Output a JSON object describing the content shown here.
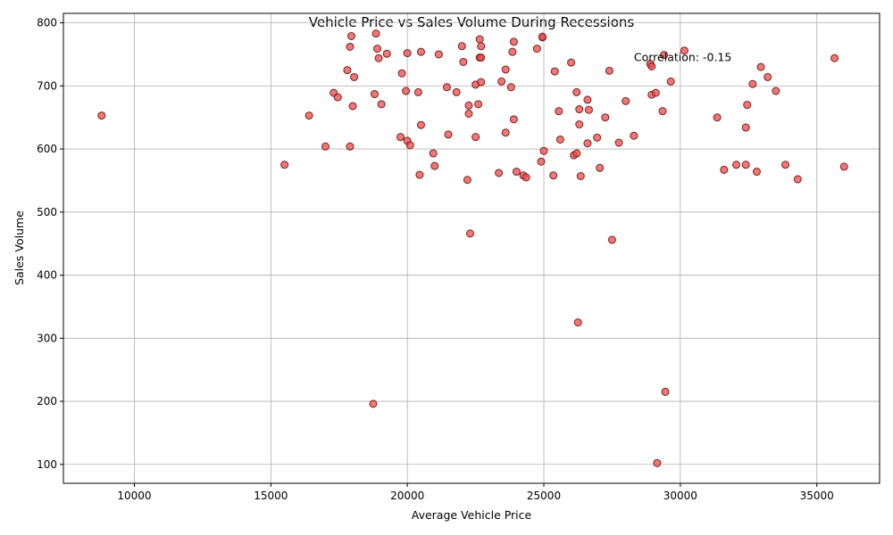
{
  "chart_data": {
    "type": "scatter",
    "title": "Vehicle Price vs Sales Volume During Recessions",
    "xlabel": "Average Vehicle Price",
    "ylabel": "Sales Volume",
    "xlim": [
      7400,
      37300
    ],
    "ylim": [
      70,
      815
    ],
    "xticks": [
      10000,
      15000,
      20000,
      25000,
      30000,
      35000
    ],
    "yticks": [
      100,
      200,
      300,
      400,
      500,
      600,
      700,
      800
    ],
    "grid": true,
    "marker_color": "#e84a4a",
    "marker_edge_color": "#7a1f1f",
    "annotation": {
      "text": "Correlation: -0.15",
      "x": 28300,
      "y": 745
    },
    "series": [
      {
        "points": [
          [
            8800,
            653
          ],
          [
            15500,
            575
          ],
          [
            16400,
            653
          ],
          [
            17000,
            604
          ],
          [
            17300,
            689
          ],
          [
            17450,
            682
          ],
          [
            17800,
            725
          ],
          [
            17900,
            762
          ],
          [
            17900,
            604
          ],
          [
            17950,
            779
          ],
          [
            18000,
            668
          ],
          [
            18050,
            714
          ],
          [
            18750,
            196
          ],
          [
            18800,
            687
          ],
          [
            18850,
            783
          ],
          [
            18900,
            759
          ],
          [
            18950,
            744
          ],
          [
            19050,
            671
          ],
          [
            19250,
            751
          ],
          [
            19750,
            619
          ],
          [
            19800,
            720
          ],
          [
            19950,
            692
          ],
          [
            20000,
            752
          ],
          [
            20000,
            613
          ],
          [
            20100,
            606
          ],
          [
            20400,
            690
          ],
          [
            20450,
            559
          ],
          [
            20500,
            754
          ],
          [
            20500,
            638
          ],
          [
            20950,
            593
          ],
          [
            21000,
            573
          ],
          [
            21150,
            750
          ],
          [
            21450,
            698
          ],
          [
            21500,
            623
          ],
          [
            21800,
            690
          ],
          [
            22000,
            763
          ],
          [
            22050,
            738
          ],
          [
            22200,
            551
          ],
          [
            22250,
            656
          ],
          [
            22250,
            669
          ],
          [
            22300,
            466
          ],
          [
            22500,
            702
          ],
          [
            22500,
            619
          ],
          [
            22600,
            671
          ],
          [
            22650,
            745
          ],
          [
            22650,
            774
          ],
          [
            22700,
            745
          ],
          [
            22700,
            763
          ],
          [
            22700,
            706
          ],
          [
            23350,
            562
          ],
          [
            23450,
            707
          ],
          [
            23600,
            726
          ],
          [
            23600,
            626
          ],
          [
            23800,
            698
          ],
          [
            23850,
            754
          ],
          [
            23900,
            770
          ],
          [
            23900,
            647
          ],
          [
            24000,
            564
          ],
          [
            24250,
            558
          ],
          [
            24350,
            555
          ],
          [
            24750,
            759
          ],
          [
            24900,
            580
          ],
          [
            24950,
            777
          ],
          [
            24950,
            778
          ],
          [
            25000,
            597
          ],
          [
            25350,
            558
          ],
          [
            25400,
            723
          ],
          [
            25550,
            660
          ],
          [
            25600,
            615
          ],
          [
            26000,
            737
          ],
          [
            26100,
            590
          ],
          [
            26200,
            690
          ],
          [
            26200,
            593
          ],
          [
            26250,
            325
          ],
          [
            26300,
            639
          ],
          [
            26300,
            663
          ],
          [
            26350,
            557
          ],
          [
            26600,
            678
          ],
          [
            26600,
            609
          ],
          [
            26650,
            662
          ],
          [
            26950,
            618
          ],
          [
            27050,
            570
          ],
          [
            27250,
            650
          ],
          [
            27400,
            724
          ],
          [
            27500,
            456
          ],
          [
            27750,
            610
          ],
          [
            28000,
            676
          ],
          [
            28300,
            621
          ],
          [
            28900,
            735
          ],
          [
            28950,
            731
          ],
          [
            28950,
            686
          ],
          [
            29100,
            689
          ],
          [
            29150,
            102
          ],
          [
            29350,
            660
          ],
          [
            29400,
            749
          ],
          [
            29450,
            215
          ],
          [
            29650,
            707
          ],
          [
            30150,
            756
          ],
          [
            31350,
            650
          ],
          [
            31600,
            567
          ],
          [
            32050,
            575
          ],
          [
            32400,
            575
          ],
          [
            32400,
            634
          ],
          [
            32450,
            670
          ],
          [
            32650,
            703
          ],
          [
            32800,
            564
          ],
          [
            32950,
            730
          ],
          [
            33200,
            714
          ],
          [
            33500,
            692
          ],
          [
            33850,
            575
          ],
          [
            34300,
            552
          ],
          [
            35650,
            744
          ],
          [
            36000,
            572
          ]
        ]
      }
    ]
  }
}
